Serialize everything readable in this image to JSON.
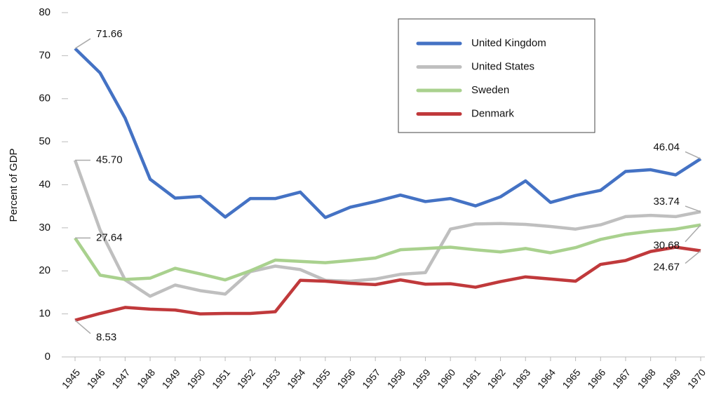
{
  "chart_data": {
    "type": "line",
    "y_label": "Percent of GDP",
    "categories": [
      "1945",
      "1946",
      "1947",
      "1948",
      "1949",
      "1950",
      "1951",
      "1952",
      "1953",
      "1954",
      "1955",
      "1956",
      "1957",
      "1958",
      "1959",
      "1960",
      "1961",
      "1962",
      "1963",
      "1964",
      "1965",
      "1966",
      "1967",
      "1968",
      "1969",
      "1970"
    ],
    "ylim": [
      0,
      80
    ],
    "yticks": [
      0,
      10,
      20,
      30,
      40,
      50,
      60,
      70,
      80
    ],
    "grid": false,
    "legend": "top-right",
    "series": [
      {
        "name": "United Kingdom",
        "color": "#4472c4",
        "values": [
          71.66,
          66,
          55.5,
          41.3,
          36.9,
          37.3,
          32.5,
          36.8,
          36.8,
          38.3,
          32.4,
          34.8,
          36.1,
          37.6,
          36.1,
          36.8,
          35.1,
          37.2,
          40.9,
          35.9,
          37.5,
          38.7,
          43.1,
          43.5,
          42.3,
          46.04
        ],
        "value_labels": [
          "71.66",
          null,
          null,
          null,
          null,
          null,
          null,
          null,
          null,
          null,
          null,
          null,
          null,
          null,
          null,
          null,
          null,
          null,
          null,
          null,
          null,
          null,
          null,
          null,
          null,
          "46.04"
        ]
      },
      {
        "name": "United States",
        "color": "#bfbfbf",
        "values": [
          45.7,
          29.5,
          17.9,
          14.1,
          16.7,
          15.4,
          14.6,
          19.8,
          21.1,
          20.3,
          17.8,
          17.6,
          18.1,
          19.2,
          19.6,
          29.7,
          30.9,
          31.0,
          30.8,
          30.3,
          29.7,
          30.7,
          32.6,
          32.9,
          32.6,
          33.74
        ],
        "value_labels": [
          "45.70",
          null,
          null,
          null,
          null,
          null,
          null,
          null,
          null,
          null,
          null,
          null,
          null,
          null,
          null,
          null,
          null,
          null,
          null,
          null,
          null,
          null,
          null,
          null,
          null,
          "33.74"
        ]
      },
      {
        "name": "Sweden",
        "color": "#a9d18e",
        "values": [
          27.64,
          19.0,
          18.0,
          18.3,
          20.6,
          19.3,
          17.9,
          20.0,
          22.5,
          22.2,
          21.9,
          22.4,
          23.0,
          24.9,
          25.2,
          25.5,
          24.9,
          24.4,
          25.2,
          24.2,
          25.4,
          27.3,
          28.5,
          29.2,
          29.7,
          30.68
        ],
        "value_labels": [
          "27.64",
          null,
          null,
          null,
          null,
          null,
          null,
          null,
          null,
          null,
          null,
          null,
          null,
          null,
          null,
          null,
          null,
          null,
          null,
          null,
          null,
          null,
          null,
          null,
          null,
          "30.68"
        ]
      },
      {
        "name": "Denmark",
        "color": "#c0393b",
        "values": [
          8.53,
          10.1,
          11.5,
          11.1,
          10.9,
          10.0,
          10.1,
          10.1,
          10.5,
          17.8,
          17.6,
          17.1,
          16.8,
          17.9,
          16.9,
          17.0,
          16.2,
          17.5,
          18.6,
          18.1,
          17.6,
          21.5,
          22.4,
          24.5,
          25.5,
          24.67
        ],
        "value_labels": [
          "8.53",
          null,
          null,
          null,
          null,
          null,
          null,
          null,
          null,
          null,
          null,
          null,
          null,
          null,
          null,
          null,
          null,
          null,
          null,
          null,
          null,
          null,
          null,
          null,
          null,
          "24.67"
        ]
      }
    ]
  }
}
